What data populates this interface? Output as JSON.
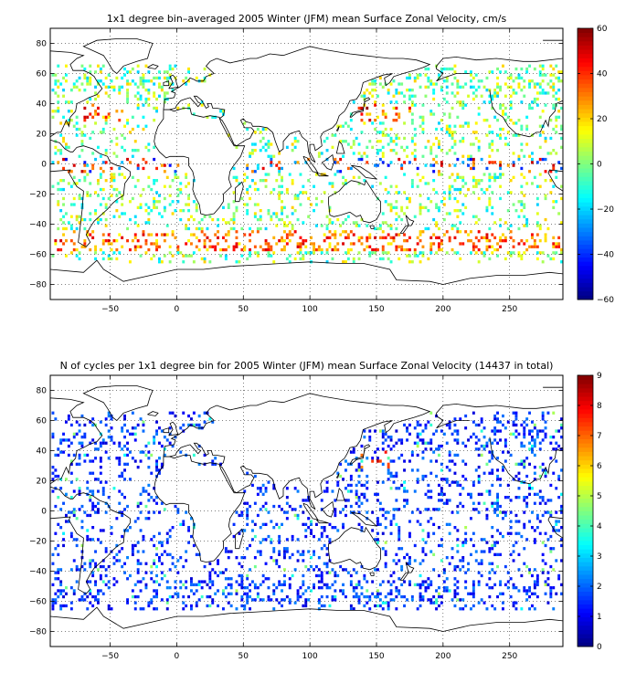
{
  "figure": [
    {
      "title": "1x1 degree bin–averaged 2005 Winter (JFM) mean Surface Zonal Velocity, cm/s",
      "colorbar_ticks": [
        "60",
        "40",
        "20",
        "0",
        "−20",
        "−40",
        "−60"
      ],
      "x_ticks": [
        "−50",
        "0",
        "50",
        "100",
        "150",
        "200",
        "250"
      ],
      "y_ticks": [
        "80",
        "60",
        "40",
        "20",
        "0",
        "−20",
        "−40",
        "−60",
        "−80"
      ]
    },
    {
      "title": "N of cycles per 1x1 degree bin for 2005 Winter (JFM) mean Surface Zonal Velocity (14437 in total)",
      "colorbar_ticks": [
        "9",
        "8",
        "7",
        "6",
        "5",
        "4",
        "3",
        "2",
        "1",
        "0"
      ],
      "x_ticks": [
        "−50",
        "0",
        "50",
        "100",
        "150",
        "200",
        "250"
      ],
      "y_ticks": [
        "80",
        "60",
        "40",
        "20",
        "0",
        "−20",
        "−40",
        "−60",
        "−80"
      ]
    }
  ],
  "chart_data": [
    {
      "type": "heatmap",
      "title": "1x1 degree bin–averaged 2005 Winter (JFM) mean Surface Zonal Velocity, cm/s",
      "xlim": [
        -95,
        290
      ],
      "ylim": [
        -90,
        90
      ],
      "x_ticks": [
        -50,
        0,
        50,
        100,
        150,
        200,
        250
      ],
      "y_ticks": [
        -80,
        -60,
        -40,
        -20,
        0,
        20,
        40,
        60,
        80
      ],
      "grid": true,
      "colorbar": {
        "min": -60,
        "max": 60,
        "ticks": [
          -60,
          -40,
          -20,
          0,
          20,
          40,
          60
        ],
        "colormap": "jet"
      }
    },
    {
      "type": "heatmap",
      "title": "N of cycles per 1x1 degree bin for 2005 Winter (JFM) mean Surface Zonal Velocity (14437 in total)",
      "total_cycles": 14437,
      "xlim": [
        -95,
        290
      ],
      "ylim": [
        -90,
        90
      ],
      "x_ticks": [
        -50,
        0,
        50,
        100,
        150,
        200,
        250
      ],
      "y_ticks": [
        -80,
        -60,
        -40,
        -20,
        0,
        20,
        40,
        60,
        80
      ],
      "grid": true,
      "colorbar": {
        "min": 0,
        "max": 9,
        "ticks": [
          0,
          1,
          2,
          3,
          4,
          5,
          6,
          7,
          8,
          9
        ],
        "colormap": "jet"
      }
    }
  ]
}
